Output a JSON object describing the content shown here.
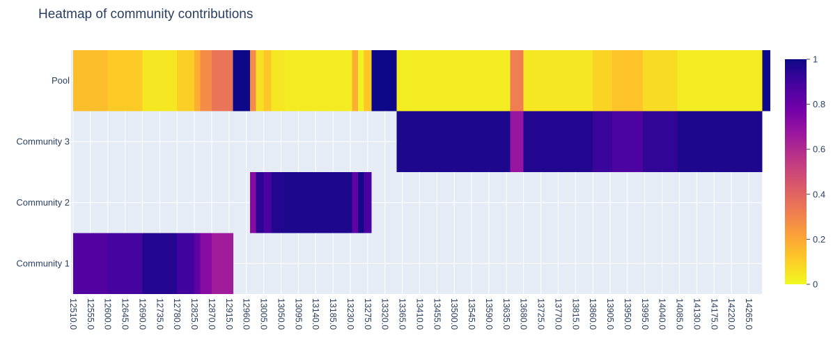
{
  "chart_data": {
    "type": "heatmap",
    "title": "Heatmap of community contributions",
    "rows": [
      "Community 1",
      "Community 2",
      "Community 3",
      "Pool"
    ],
    "x_tick_labels": [
      "12510.0",
      "12555.0",
      "12600.0",
      "12645.0",
      "12690.0",
      "12735.0",
      "12780.0",
      "12825.0",
      "12870.0",
      "12915.0",
      "12960.0",
      "13005.0",
      "13050.0",
      "13095.0",
      "13140.0",
      "13185.0",
      "13230.0",
      "13275.0",
      "13320.0",
      "13365.0",
      "13410.0",
      "13455.0",
      "13500.0",
      "13545.0",
      "13590.0",
      "13635.0",
      "13680.0",
      "13725.0",
      "13770.0",
      "13815.0",
      "13860.0",
      "13905.0",
      "13950.0",
      "13995.0",
      "14040.0",
      "14085.0",
      "14130.0",
      "14175.0",
      "14220.0",
      "14265.0"
    ],
    "x_range": [
      12510,
      14265
    ],
    "colorscale": "plasma_r",
    "colorbar": {
      "min": 0,
      "max": 1,
      "ticks": [
        "0",
        "0.2",
        "0.4",
        "0.6",
        "0.8",
        "1"
      ]
    },
    "segments": [
      {
        "start": 12510,
        "end": 12600,
        "values": [
          0.86,
          null,
          null,
          0.14
        ]
      },
      {
        "start": 12600,
        "end": 12690,
        "values": [
          0.89,
          null,
          null,
          0.11
        ]
      },
      {
        "start": 12690,
        "end": 12780,
        "values": [
          0.96,
          null,
          null,
          0.04
        ]
      },
      {
        "start": 12780,
        "end": 12825,
        "values": [
          0.9,
          null,
          null,
          0.1
        ]
      },
      {
        "start": 12825,
        "end": 12840,
        "values": [
          0.82,
          null,
          null,
          0.18
        ]
      },
      {
        "start": 12840,
        "end": 12870,
        "values": [
          0.72,
          null,
          null,
          0.28
        ]
      },
      {
        "start": 12870,
        "end": 12925,
        "values": [
          0.65,
          null,
          null,
          0.35
        ]
      },
      {
        "start": 12925,
        "end": 12970,
        "values": [
          null,
          null,
          null,
          1.0
        ]
      },
      {
        "start": 12970,
        "end": 12985,
        "values": [
          null,
          0.72,
          null,
          0.28
        ]
      },
      {
        "start": 12985,
        "end": 13005,
        "values": [
          null,
          0.94,
          null,
          0.06
        ]
      },
      {
        "start": 13005,
        "end": 13025,
        "values": [
          null,
          0.88,
          null,
          0.12
        ]
      },
      {
        "start": 13025,
        "end": 13060,
        "values": [
          null,
          0.96,
          null,
          0.04
        ]
      },
      {
        "start": 13060,
        "end": 13235,
        "values": [
          null,
          0.97,
          null,
          0.03
        ]
      },
      {
        "start": 13235,
        "end": 13250,
        "values": [
          null,
          0.82,
          null,
          0.18
        ]
      },
      {
        "start": 13250,
        "end": 13265,
        "values": [
          null,
          0.98,
          null,
          0.02
        ]
      },
      {
        "start": 13265,
        "end": 13285,
        "values": [
          null,
          0.88,
          null,
          0.12
        ]
      },
      {
        "start": 13285,
        "end": 13350,
        "values": [
          null,
          null,
          null,
          1.0
        ]
      },
      {
        "start": 13350,
        "end": 13645,
        "values": [
          null,
          null,
          0.97,
          0.03
        ]
      },
      {
        "start": 13645,
        "end": 13680,
        "values": [
          null,
          null,
          0.68,
          0.32
        ]
      },
      {
        "start": 13680,
        "end": 13860,
        "values": [
          null,
          null,
          0.96,
          0.04
        ]
      },
      {
        "start": 13860,
        "end": 13910,
        "values": [
          null,
          null,
          0.91,
          0.09
        ]
      },
      {
        "start": 13910,
        "end": 13990,
        "values": [
          null,
          null,
          0.87,
          0.13
        ]
      },
      {
        "start": 13990,
        "end": 14080,
        "values": [
          null,
          null,
          0.93,
          0.07
        ]
      },
      {
        "start": 14080,
        "end": 14300,
        "values": [
          null,
          null,
          0.97,
          0.03
        ]
      },
      {
        "start": 14300,
        "end": 14320,
        "values": [
          null,
          null,
          null,
          1.0
        ]
      }
    ]
  }
}
